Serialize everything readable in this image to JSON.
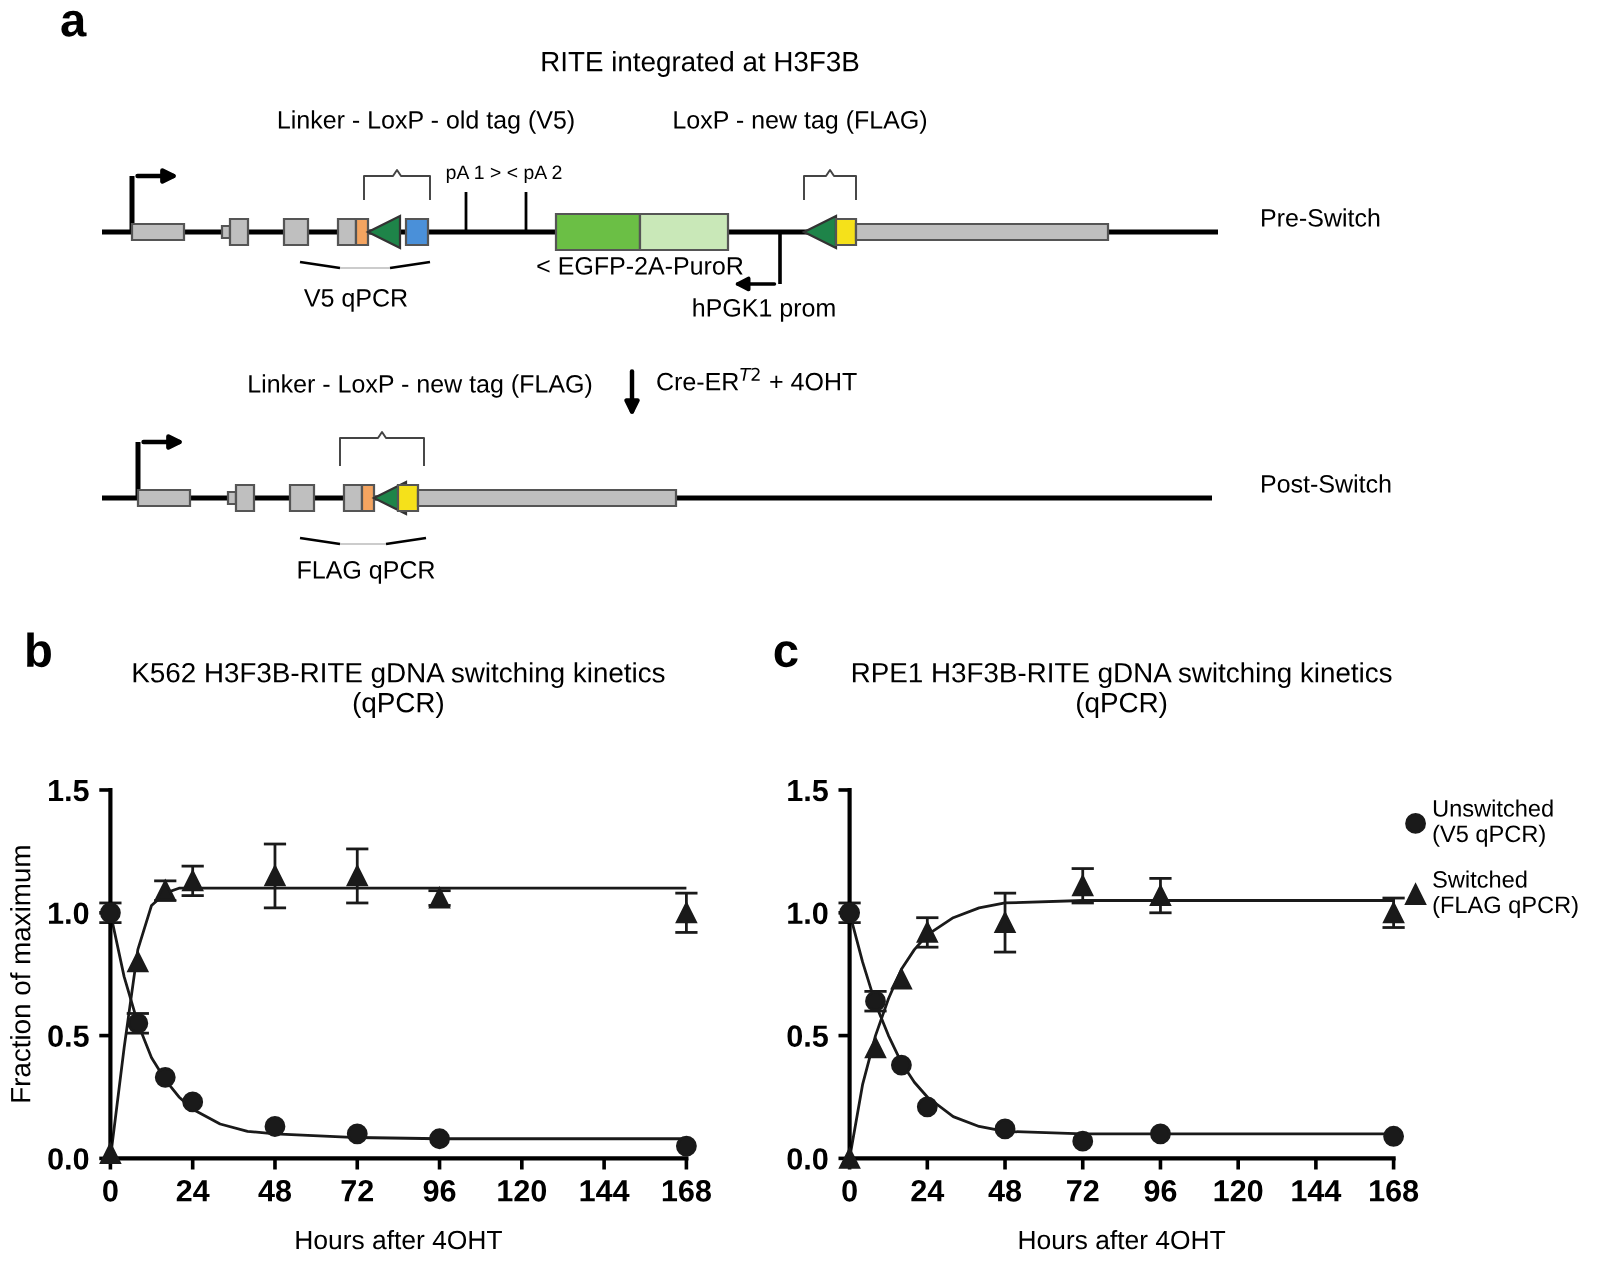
{
  "chart_data": [
    {
      "type": "other",
      "title": "RITE integrated at H3F3B",
      "annotations": [
        "a",
        "Linker - LoxP - old tag (V5)",
        "pA 1 > < pA 2",
        "LoxP - new tag (FLAG)",
        "Pre-Switch",
        "< EGFP-2A-PuroR",
        "V5 qPCR",
        "hPGK1 prom",
        "Linker - LoxP - new tag (FLAG)",
        "Cre-ER$^{T2}$ + 4OHT",
        "Post-Switch",
        "FLAG qPCR"
      ]
    },
    {
      "type": "scatter",
      "title": "K562 H3F3B-RITE gDNA switching kinetics\n(qPCR)",
      "xlabel": "Hours after 4OHT",
      "ylabel": "Fraction of maximum",
      "annotations": [
        "b"
      ],
      "xlim": [
        0,
        168
      ],
      "ylim": [
        0,
        1.5
      ],
      "xticks": [
        0,
        24,
        48,
        72,
        96,
        120,
        144,
        168
      ],
      "yticks": [
        {
          "value": 0,
          "label": "0.0"
        },
        {
          "value": 0.5,
          "label": "0.5"
        },
        {
          "value": 1,
          "label": "1.0"
        },
        {
          "value": 1.5,
          "label": "1.5"
        }
      ],
      "x": [
        0,
        8,
        16,
        24,
        48,
        72,
        96,
        168
      ],
      "series": [
        {
          "color": "#1a1a1a",
          "marker": "circle",
          "values": [
            1.0,
            0.55,
            0.33,
            0.23,
            0.13,
            0.1,
            0.08,
            0.05
          ],
          "errors": [
            0.04,
            0.04,
            null,
            null,
            null,
            null,
            null,
            null
          ]
        },
        {
          "color": "#1a1a1a",
          "marker": "triangle",
          "values": [
            0.02,
            0.8,
            1.09,
            1.13,
            1.15,
            1.15,
            1.06,
            1.0
          ],
          "errors": [
            null,
            null,
            0.04,
            0.06,
            0.13,
            0.11,
            0.03,
            0.08
          ]
        },
        {
          "type": "line",
          "color": "#1a1a1a",
          "x": [
            0,
            4,
            8,
            12,
            16,
            20,
            24,
            32,
            40,
            48,
            72,
            96,
            168
          ],
          "values": [
            1.0,
            0.74,
            0.55,
            0.41,
            0.32,
            0.25,
            0.2,
            0.14,
            0.11,
            0.1,
            0.085,
            0.08,
            0.08
          ]
        },
        {
          "type": "line",
          "color": "#1a1a1a",
          "x": [
            0,
            4,
            8,
            12,
            16,
            20,
            24,
            168
          ],
          "values": [
            0.0,
            0.45,
            0.85,
            1.03,
            1.08,
            1.1,
            1.1,
            1.1
          ]
        }
      ]
    },
    {
      "type": "scatter",
      "title": "RPE1 H3F3B-RITE gDNA switching kinetics\n(qPCR)",
      "xlabel": "Hours after 4OHT",
      "legend": "right",
      "annotations": [
        "c"
      ],
      "xlim": [
        0,
        168
      ],
      "ylim": [
        0,
        1.5
      ],
      "xticks": [
        0,
        24,
        48,
        72,
        96,
        120,
        144,
        168
      ],
      "yticks": [
        {
          "value": 0,
          "label": "0.0"
        },
        {
          "value": 0.5,
          "label": "0.5"
        },
        {
          "value": 1,
          "label": "1.0"
        },
        {
          "value": 1.5,
          "label": "1.5"
        }
      ],
      "x": [
        0,
        8,
        16,
        24,
        48,
        72,
        96,
        168
      ],
      "series": [
        {
          "name": "Unswitched\n(V5 qPCR)",
          "color": "#1a1a1a",
          "marker": "circle",
          "values": [
            1.0,
            0.64,
            0.38,
            0.21,
            0.12,
            0.07,
            0.1,
            0.09
          ],
          "errors": [
            0.04,
            0.04,
            null,
            null,
            null,
            null,
            null,
            null
          ]
        },
        {
          "name": "Switched\n(FLAG qPCR)",
          "color": "#1a1a1a",
          "marker": "triangle",
          "values": [
            0.0,
            0.45,
            0.73,
            0.92,
            0.96,
            1.11,
            1.07,
            1.0
          ],
          "errors": [
            null,
            null,
            null,
            0.06,
            0.12,
            0.07,
            0.07,
            0.06
          ]
        },
        {
          "type": "line",
          "color": "#1a1a1a",
          "x": [
            0,
            4,
            8,
            12,
            16,
            20,
            24,
            32,
            40,
            48,
            72,
            168
          ],
          "values": [
            1.0,
            0.8,
            0.63,
            0.5,
            0.39,
            0.31,
            0.25,
            0.17,
            0.13,
            0.11,
            0.1,
            0.1
          ]
        },
        {
          "type": "line",
          "color": "#1a1a1a",
          "x": [
            0,
            4,
            8,
            12,
            16,
            20,
            24,
            32,
            40,
            48,
            72,
            168
          ],
          "values": [
            0.0,
            0.3,
            0.5,
            0.65,
            0.77,
            0.85,
            0.91,
            0.98,
            1.02,
            1.04,
            1.05,
            1.05
          ]
        }
      ]
    }
  ]
}
